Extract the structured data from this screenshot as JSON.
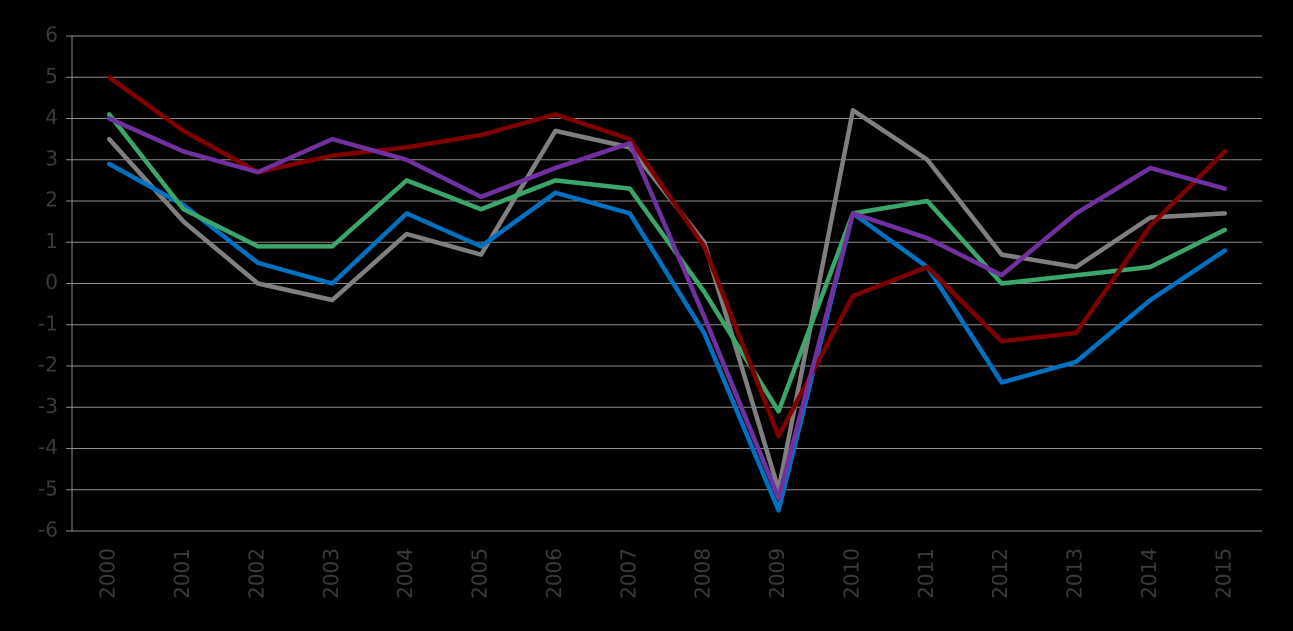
{
  "chart_data": {
    "type": "line",
    "categories": [
      "2000",
      "2001",
      "2002",
      "2003",
      "2004",
      "2005",
      "2006",
      "2007",
      "2008",
      "2009",
      "2010",
      "2011",
      "2012",
      "2013",
      "2014",
      "2015"
    ],
    "series": [
      {
        "color": "#7f7f7f",
        "values": [
          3.5,
          1.5,
          0.0,
          -0.4,
          1.2,
          0.7,
          3.7,
          3.3,
          1.0,
          -5.0,
          4.2,
          3.0,
          0.7,
          0.4,
          1.6,
          1.7
        ]
      },
      {
        "color": "#0070c0",
        "values": [
          2.9,
          1.9,
          0.5,
          0.0,
          1.7,
          0.9,
          2.2,
          1.7,
          -1.2,
          -5.5,
          1.7,
          0.4,
          -2.4,
          -1.9,
          -0.4,
          0.8
        ]
      },
      {
        "color": "#3aa66a",
        "values": [
          4.1,
          1.8,
          0.9,
          0.9,
          2.5,
          1.8,
          2.5,
          2.3,
          -0.2,
          -3.1,
          1.7,
          2.0,
          0.0,
          0.2,
          0.4,
          1.3
        ]
      },
      {
        "color": "#7f0000",
        "values": [
          5.0,
          3.7,
          2.7,
          3.1,
          3.3,
          3.6,
          4.1,
          3.5,
          0.9,
          -3.7,
          -0.3,
          0.4,
          -1.4,
          -1.2,
          1.4,
          3.2
        ]
      },
      {
        "color": "#7030a0",
        "values": [
          4.0,
          3.2,
          2.7,
          3.5,
          3.0,
          2.1,
          2.8,
          3.4,
          -0.8,
          -5.2,
          1.7,
          1.1,
          0.2,
          1.7,
          2.8,
          2.3
        ]
      }
    ],
    "ylim": [
      -6,
      6
    ],
    "yticks": [
      -6,
      -5,
      -4,
      -3,
      -2,
      -1,
      0,
      1,
      2,
      3,
      4,
      5,
      6
    ],
    "grid": true
  }
}
